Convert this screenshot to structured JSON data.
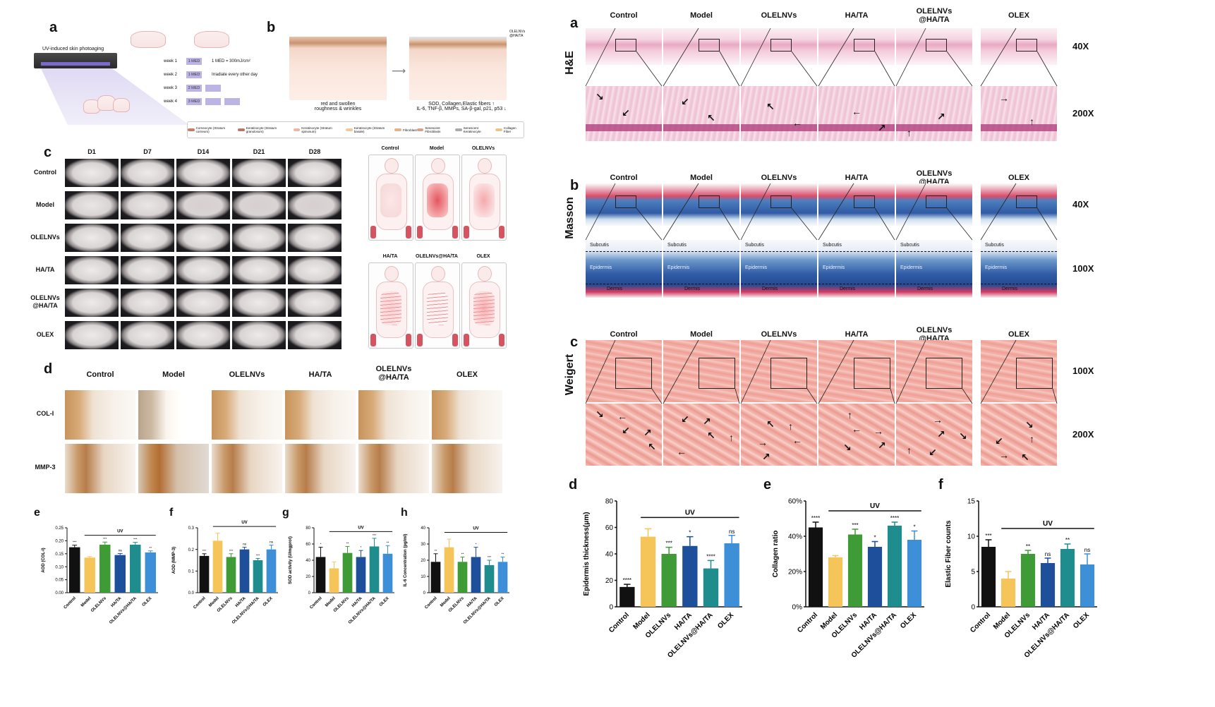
{
  "left": {
    "panel_a": {
      "letter": "a",
      "device_caption": "UV-induced skin photoaging",
      "schedule": [
        {
          "week": "week 1",
          "dose": "1 MED",
          "note": "1 MED = 300mJ/cm²"
        },
        {
          "week": "week 2",
          "dose": "1 MED",
          "note": "Irradiate every other day"
        },
        {
          "week": "week 3",
          "dose": "2 MED",
          "note": ""
        },
        {
          "week": "week 4",
          "dose": "3 MED",
          "note": ""
        }
      ]
    },
    "panel_b": {
      "letter": "b",
      "left_caption": "red and swollen\nroughness & wrinkles",
      "right_caption": "SOD, Collagen,Elastic fibers ↑\nIL-6, TNF-β, MMPs, SA-β-gal, p21, p53 ↓",
      "right_tag": "OLELNVs\n@HA/TA",
      "legend": [
        "Corneocyte (Stratum corneum)",
        "Keratinocyte (Stratum granulosum)",
        "Keratinocyte (Stratum spinosum)",
        "Keratinocyte (Stratum basale)",
        "Fibroblast",
        "Senescent Fibroblasts",
        "Senescent Keratinocyte",
        "Collagen Fiber"
      ]
    },
    "panel_c": {
      "letter": "c",
      "days": [
        "D1",
        "D7",
        "D14",
        "D21",
        "D28"
      ],
      "groups": [
        "Control",
        "Model",
        "OLELNVs",
        "HA/TA",
        "OLELNVs\n@HA/TA",
        "OLEX"
      ],
      "schematic_top": [
        "Control",
        "Model",
        "OLELNVs"
      ],
      "schematic_bottom": [
        "HA/TA",
        "OLELNVs@HA/TA",
        "OLEX"
      ]
    },
    "panel_d": {
      "letter": "d",
      "columns": [
        "Control",
        "Model",
        "OLELNVs",
        "HA/TA",
        "OLELNVs\n@HA/TA",
        "OLEX"
      ],
      "rows": [
        "COL-I",
        "MMP-3"
      ]
    },
    "uv_label": "UV"
  },
  "right": {
    "panel_a": {
      "letter": "a",
      "stain": "H&E",
      "mags": [
        "40X",
        "200X"
      ],
      "columns": [
        "Control",
        "Model",
        "OLELNVs",
        "HA/TA",
        "OLELNVs\n@HA/TA",
        "OLEX"
      ]
    },
    "panel_b": {
      "letter": "b",
      "stain": "Masson",
      "mags": [
        "40X",
        "100X"
      ],
      "columns": [
        "Control",
        "Model",
        "OLELNVs",
        "HA/TA",
        "OLELNVs\n@HA/TA",
        "OLEX"
      ],
      "layer_labels": [
        "Subcutis",
        "Epidermis",
        "Dermis"
      ]
    },
    "panel_c": {
      "letter": "c",
      "stain": "Weigert",
      "mags": [
        "100X",
        "200X"
      ],
      "columns": [
        "Control",
        "Model",
        "OLELNVs",
        "HA/TA",
        "OLELNVs\n@HA/TA",
        "OLEX"
      ]
    }
  },
  "colors": {
    "Control": "#111111",
    "Model": "#f6c55a",
    "OLELNVs": "#3f9b35",
    "HA/TA": "#1d4f9a",
    "OLELNVs@HA/TA": "#1f8c8e",
    "OLEX": "#3d8fd8"
  },
  "chart_data": [
    {
      "id": "e-left",
      "letter": "e",
      "type": "bar",
      "categories": [
        "Control",
        "Model",
        "OLELNVs",
        "HA/TA",
        "OLELNVs@HA/TA",
        "OLEX"
      ],
      "values": [
        0.175,
        0.135,
        0.185,
        0.145,
        0.185,
        0.155
      ],
      "errors": [
        0.008,
        0.004,
        0.01,
        0.006,
        0.009,
        0.006
      ],
      "sig": [
        "***",
        "",
        "***",
        "ns",
        "***",
        "**"
      ],
      "ylabel": "AOD (COL-I)",
      "ylim": [
        0,
        0.25
      ],
      "yticks": [
        0,
        0.05,
        0.1,
        0.15,
        0.2,
        0.25
      ],
      "ytick_labels": [
        "0.00",
        "0.05",
        "0.10",
        "0.15",
        "0.20",
        "0.25"
      ],
      "group_label": "UV"
    },
    {
      "id": "f-left",
      "letter": "f",
      "type": "bar",
      "categories": [
        "Control",
        "Model",
        "OLELNVs",
        "HA/TA",
        "OLELNVs@HA/TA",
        "OLEX"
      ],
      "values": [
        0.17,
        0.24,
        0.165,
        0.2,
        0.15,
        0.2
      ],
      "errors": [
        0.01,
        0.035,
        0.015,
        0.01,
        0.008,
        0.02
      ],
      "sig": [
        "***",
        "",
        "***",
        "ns",
        "***",
        "ns"
      ],
      "ylabel": "AOD (MMP-3)",
      "ylim": [
        0,
        0.3
      ],
      "yticks": [
        0,
        0.1,
        0.2,
        0.3
      ],
      "ytick_labels": [
        "0.0",
        "0.1",
        "0.2",
        "0.3"
      ],
      "group_label": "UV"
    },
    {
      "id": "g-left",
      "letter": "g",
      "type": "bar",
      "categories": [
        "Control",
        "Model",
        "OLELNVs",
        "HA/TA",
        "OLELNVs@HA/TA",
        "OLEX"
      ],
      "values": [
        44,
        30,
        49,
        44,
        57,
        48
      ],
      "errors": [
        12,
        8,
        8,
        8,
        10,
        10
      ],
      "sig": [
        "*",
        "",
        "**",
        "*",
        "***",
        "**"
      ],
      "ylabel": "SOD activity (U/mgprot)",
      "ylim": [
        0,
        80
      ],
      "yticks": [
        0,
        20,
        40,
        60,
        80
      ],
      "ytick_labels": [
        "0",
        "20",
        "40",
        "60",
        "80"
      ],
      "group_label": "UV"
    },
    {
      "id": "h-left",
      "letter": "h",
      "type": "bar",
      "categories": [
        "Control",
        "Model",
        "OLELNVs",
        "HA/TA",
        "OLELNVs@HA/TA",
        "OLEX"
      ],
      "values": [
        19,
        28,
        19,
        22,
        17,
        19
      ],
      "errors": [
        5,
        5,
        3,
        6,
        3,
        3
      ],
      "sig": [
        "**",
        "",
        "**",
        "*",
        "***",
        "**"
      ],
      "ylabel": "IL-6 Concentration (pg/ml)",
      "ylim": [
        0,
        40
      ],
      "yticks": [
        0,
        10,
        20,
        30,
        40
      ],
      "ytick_labels": [
        "0",
        "10",
        "20",
        "30",
        "40"
      ],
      "group_label": "UV"
    },
    {
      "id": "d-right",
      "letter": "d",
      "type": "bar",
      "categories": [
        "Control",
        "Model",
        "OLELNVs",
        "HA/TA",
        "OLELNVs@HA/TA",
        "OLEX"
      ],
      "values": [
        15,
        53,
        40,
        46,
        29,
        48
      ],
      "errors": [
        2,
        6,
        5,
        7,
        6,
        6
      ],
      "sig": [
        "****",
        "",
        "***",
        "*",
        "****",
        "ns"
      ],
      "ylabel": "Epidermis thickness(μm)",
      "ylim": [
        0,
        80
      ],
      "yticks": [
        0,
        20,
        40,
        60,
        80
      ],
      "ytick_labels": [
        "0",
        "20",
        "40",
        "60",
        "80"
      ],
      "group_label": "UV"
    },
    {
      "id": "e-right",
      "letter": "e",
      "type": "bar",
      "categories": [
        "Control",
        "Model",
        "OLELNVs",
        "HA/TA",
        "OLELNVs@HA/TA",
        "OLEX"
      ],
      "values": [
        45,
        28,
        41,
        34,
        46,
        38
      ],
      "errors": [
        3,
        1,
        3,
        3,
        2,
        5
      ],
      "sig": [
        "****",
        "",
        "***",
        "*",
        "****",
        "*"
      ],
      "ylabel": "Collagen ratio",
      "ylim": [
        0,
        60
      ],
      "yticks": [
        0,
        20,
        40,
        60
      ],
      "ytick_labels": [
        "0%",
        "20%",
        "40%",
        "60%"
      ],
      "group_label": "UV"
    },
    {
      "id": "f-right",
      "letter": "f",
      "type": "bar",
      "categories": [
        "Control",
        "Model",
        "OLELNVs",
        "HA/TA",
        "OLELNVs@HA/TA",
        "OLEX"
      ],
      "values": [
        8.5,
        4,
        7.5,
        6.2,
        8.2,
        6
      ],
      "errors": [
        1,
        1,
        0.5,
        0.7,
        0.7,
        1.5
      ],
      "sig": [
        "***",
        "",
        "**",
        "ns",
        "**",
        "ns"
      ],
      "ylabel": "Elastic Fiber counts",
      "ylim": [
        0,
        15
      ],
      "yticks": [
        0,
        5,
        10,
        15
      ],
      "ytick_labels": [
        "0",
        "5",
        "10",
        "15"
      ],
      "group_label": "UV"
    }
  ]
}
